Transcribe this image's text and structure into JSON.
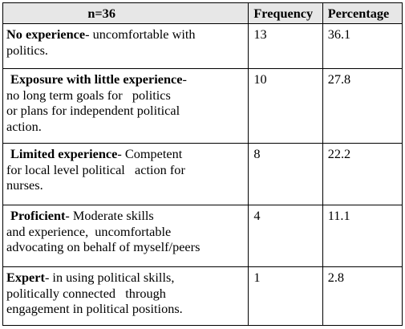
{
  "table": {
    "headers": {
      "n": "n=36",
      "frequency": "Frequency",
      "percentage": "Percentage"
    },
    "rows": [
      {
        "level": "No experience",
        "desc_first": "- uncomfortable with",
        "desc_rest": [
          "politics."
        ],
        "frequency": "13",
        "percentage": "36.1"
      },
      {
        "level": "Exposure with little experience",
        "desc_first": "-",
        "desc_rest": [
          "no long term goals for   politics",
          "or plans for independent political",
          "action."
        ],
        "frequency": "10",
        "percentage": "27.8"
      },
      {
        "level": "Limited experience",
        "desc_first": "- Competent",
        "desc_rest": [
          "for local level political   action for",
          "nurses."
        ],
        "frequency": "8",
        "percentage": "22.2"
      },
      {
        "level": "Proficient",
        "desc_first": "- Moderate skills",
        "desc_rest": [
          "and experience,  uncomfortable",
          "advocating on behalf of myself/peers"
        ],
        "frequency": "4",
        "percentage": "11.1"
      },
      {
        "level": "Expert",
        "desc_first": "- in using political skills,",
        "desc_rest": [
          "politically connected   through",
          "engagement in political positions."
        ],
        "frequency": "1",
        "percentage": "2.8"
      }
    ]
  }
}
